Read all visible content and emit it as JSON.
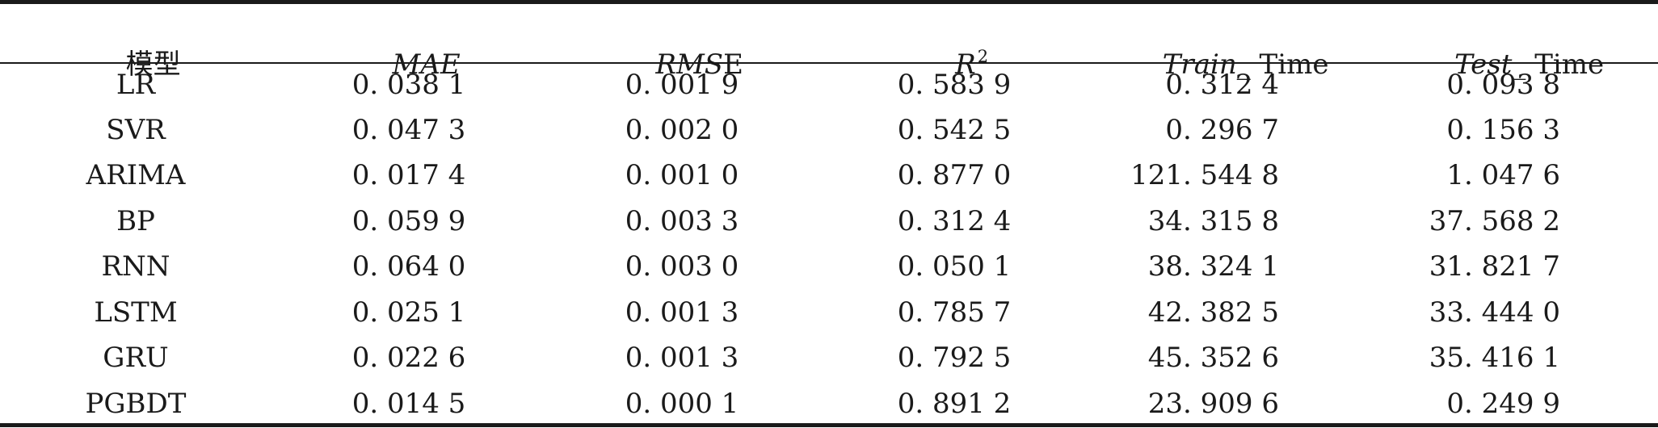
{
  "table": {
    "headers": [
      {
        "col": "model",
        "text": "模型"
      },
      {
        "col": "mae",
        "text": "MAE"
      },
      {
        "col": "rmse_italic",
        "text": "RMS"
      },
      {
        "col": "rmse_roman",
        "text": "E"
      },
      {
        "col": "r2_base",
        "text": "R"
      },
      {
        "col": "r2_sup",
        "text": "2"
      },
      {
        "col": "train_italic",
        "text": "Train_"
      },
      {
        "col": "train_roman",
        "text": "Time"
      },
      {
        "col": "test_italic",
        "text": "Test_"
      },
      {
        "col": "test_roman",
        "text": "Time"
      }
    ],
    "rows": [
      {
        "model": "LR",
        "mae": "0. 038 1",
        "rmse": "0. 001 9",
        "r2": "0. 583 9",
        "train": "0. 312 4",
        "test": "0. 093 8"
      },
      {
        "model": "SVR",
        "mae": "0. 047 3",
        "rmse": "0. 002 0",
        "r2": "0. 542 5",
        "train": "0. 296 7",
        "test": "0. 156 3"
      },
      {
        "model": "ARIMA",
        "mae": "0. 017 4",
        "rmse": "0. 001 0",
        "r2": "0. 877 0",
        "train": "121. 544 8",
        "test": "1. 047 6"
      },
      {
        "model": "BP",
        "mae": "0. 059 9",
        "rmse": "0. 003 3",
        "r2": "0. 312 4",
        "train": "34. 315 8",
        "test": "37. 568 2"
      },
      {
        "model": "RNN",
        "mae": "0. 064 0",
        "rmse": "0. 003 0",
        "r2": "0. 050 1",
        "train": "38. 324 1",
        "test": "31. 821 7"
      },
      {
        "model": "LSTM",
        "mae": "0. 025 1",
        "rmse": "0. 001 3",
        "r2": "0. 785 7",
        "train": "42. 382 5",
        "test": "33. 444 0"
      },
      {
        "model": "GRU",
        "mae": "0. 022 6",
        "rmse": "0. 001 3",
        "r2": "0. 792 5",
        "train": "45. 352 6",
        "test": "35. 416 1"
      },
      {
        "model": "PGBDT",
        "mae": "0. 014 5",
        "rmse": "0. 000 1",
        "r2": "0. 891 2",
        "train": "23. 909 6",
        "test": "0. 249 9"
      }
    ]
  }
}
